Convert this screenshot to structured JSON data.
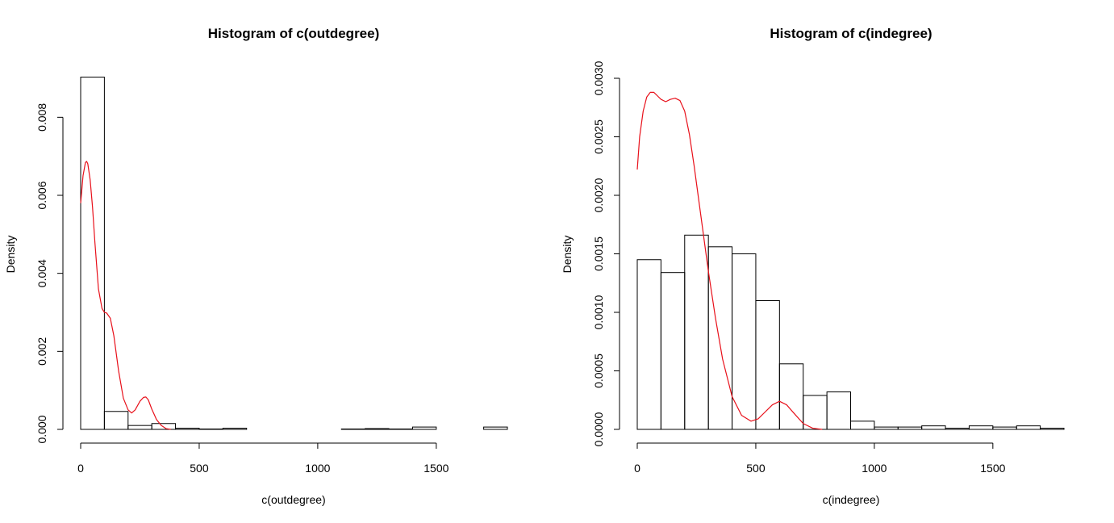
{
  "chart_data": [
    {
      "type": "bar",
      "title": "Histogram of c(outdegree)",
      "xlabel": "c(outdegree)",
      "ylabel": "Density",
      "xlim": [
        0,
        1800
      ],
      "ylim": [
        0,
        0.009
      ],
      "x_ticks": [
        "0",
        "500",
        "1000",
        "1500"
      ],
      "x_tick_values": [
        0,
        500,
        1000,
        1500
      ],
      "y_ticks": [
        "0.000",
        "0.002",
        "0.004",
        "0.006",
        "0.008"
      ],
      "y_tick_values": [
        0,
        0.002,
        0.004,
        0.006,
        0.008
      ],
      "bin_width": 100,
      "bins_start": [
        0,
        100,
        200,
        300,
        400,
        500,
        600,
        700,
        800,
        900,
        1000,
        1100,
        1200,
        1300,
        1400,
        1500,
        1600,
        1700
      ],
      "values": [
        0.00903,
        0.00046,
        0.0001,
        0.00015,
        3e-05,
        1e-05,
        3e-05,
        0.0,
        0.0,
        0.0,
        0.0,
        1e-05,
        2e-05,
        1e-05,
        6e-05,
        0.0,
        0.0,
        6e-05
      ],
      "density_curve": {
        "color": "#e8101a",
        "x": [
          0,
          10,
          20,
          25,
          30,
          40,
          50,
          60,
          75,
          90,
          100,
          110,
          125,
          140,
          160,
          180,
          200,
          215,
          230,
          250,
          265,
          275,
          285,
          300,
          320,
          340,
          360,
          380
        ],
        "y": [
          0.0058,
          0.0065,
          0.00684,
          0.00687,
          0.00681,
          0.0064,
          0.0057,
          0.0048,
          0.0036,
          0.0031,
          0.003,
          0.00298,
          0.00285,
          0.0024,
          0.0015,
          0.0008,
          0.0005,
          0.00042,
          0.0005,
          0.00072,
          0.00082,
          0.00083,
          0.00076,
          0.00052,
          0.00025,
          0.0001,
          2e-05,
          0.0
        ]
      }
    },
    {
      "type": "bar",
      "title": "Histogram of c(indegree)",
      "xlabel": "c(indegree)",
      "ylabel": "Density",
      "xlim": [
        0,
        1800
      ],
      "ylim": [
        0,
        0.003
      ],
      "x_ticks": [
        "0",
        "500",
        "1000",
        "1500"
      ],
      "x_tick_values": [
        0,
        500,
        1000,
        1500
      ],
      "y_ticks": [
        "0.0000",
        "0.0005",
        "0.0010",
        "0.0015",
        "0.0020",
        "0.0025",
        "0.0030"
      ],
      "y_tick_values": [
        0,
        0.0005,
        0.001,
        0.0015,
        0.002,
        0.0025,
        0.003
      ],
      "bin_width": 100,
      "bins_start": [
        0,
        100,
        200,
        300,
        400,
        500,
        600,
        700,
        800,
        900,
        1000,
        1100,
        1200,
        1300,
        1400,
        1500,
        1600,
        1700
      ],
      "values": [
        0.00145,
        0.00134,
        0.00166,
        0.00156,
        0.0015,
        0.0011,
        0.00056,
        0.00029,
        0.00032,
        7e-05,
        2e-05,
        2e-05,
        3e-05,
        1e-05,
        3e-05,
        2e-05,
        3e-05,
        1e-05
      ],
      "density_curve": {
        "color": "#e8101a",
        "x": [
          0,
          10,
          25,
          40,
          55,
          70,
          85,
          100,
          120,
          140,
          160,
          180,
          200,
          220,
          240,
          260,
          280,
          300,
          330,
          360,
          400,
          440,
          480,
          510,
          540,
          570,
          600,
          630,
          660,
          700,
          740,
          780
        ],
        "y": [
          0.00222,
          0.0025,
          0.00272,
          0.00284,
          0.00288,
          0.00288,
          0.00285,
          0.00282,
          0.0028,
          0.00282,
          0.00283,
          0.00281,
          0.00272,
          0.00252,
          0.00225,
          0.00195,
          0.00165,
          0.00135,
          0.00095,
          0.0006,
          0.00028,
          0.00012,
          7e-05,
          9e-05,
          0.00015,
          0.00021,
          0.00024,
          0.00021,
          0.00014,
          5e-05,
          1e-05,
          0.0
        ]
      }
    }
  ]
}
